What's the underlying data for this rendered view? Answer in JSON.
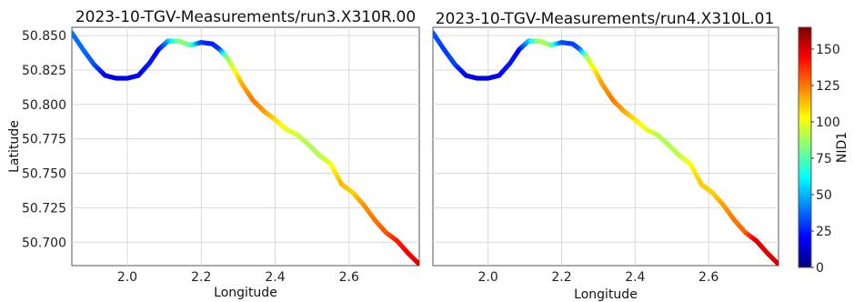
{
  "chart_data": [
    {
      "type": "scatter",
      "title": "2023-10-TGV-Measurements/run3.X310R.00",
      "xlabel": "Longitude",
      "ylabel": "Latitude",
      "xlim": [
        1.85,
        2.79
      ],
      "ylim": [
        50.683,
        50.856
      ],
      "xticks": [
        "2.0",
        "2.2",
        "2.4",
        "2.6"
      ],
      "yticks": [
        "50.850",
        "50.825",
        "50.800",
        "50.775",
        "50.750",
        "50.725",
        "50.700"
      ],
      "grid": true,
      "colored_by": "NID1",
      "points": [
        {
          "x": 1.85,
          "y": 50.852,
          "c": 40
        },
        {
          "x": 1.88,
          "y": 50.84,
          "c": 38
        },
        {
          "x": 1.91,
          "y": 50.829,
          "c": 35
        },
        {
          "x": 1.94,
          "y": 50.821,
          "c": 20
        },
        {
          "x": 1.97,
          "y": 50.819,
          "c": 15
        },
        {
          "x": 2.0,
          "y": 50.819,
          "c": 18
        },
        {
          "x": 2.03,
          "y": 50.821,
          "c": 20
        },
        {
          "x": 2.06,
          "y": 50.83,
          "c": 25
        },
        {
          "x": 2.085,
          "y": 50.84,
          "c": 20
        },
        {
          "x": 2.11,
          "y": 50.846,
          "c": 45
        },
        {
          "x": 2.14,
          "y": 50.846,
          "c": 85
        },
        {
          "x": 2.17,
          "y": 50.843,
          "c": 80
        },
        {
          "x": 2.2,
          "y": 50.845,
          "c": 30
        },
        {
          "x": 2.23,
          "y": 50.844,
          "c": 25
        },
        {
          "x": 2.25,
          "y": 50.84,
          "c": 30
        },
        {
          "x": 2.27,
          "y": 50.834,
          "c": 85
        },
        {
          "x": 2.29,
          "y": 50.825,
          "c": 100
        },
        {
          "x": 2.31,
          "y": 50.815,
          "c": 115
        },
        {
          "x": 2.34,
          "y": 50.803,
          "c": 125
        },
        {
          "x": 2.37,
          "y": 50.795,
          "c": 120
        },
        {
          "x": 2.4,
          "y": 50.789,
          "c": 110
        },
        {
          "x": 2.43,
          "y": 50.782,
          "c": 100
        },
        {
          "x": 2.46,
          "y": 50.778,
          "c": 95
        },
        {
          "x": 2.49,
          "y": 50.771,
          "c": 90
        },
        {
          "x": 2.52,
          "y": 50.763,
          "c": 90
        },
        {
          "x": 2.55,
          "y": 50.757,
          "c": 100
        },
        {
          "x": 2.58,
          "y": 50.742,
          "c": 115
        },
        {
          "x": 2.61,
          "y": 50.736,
          "c": 110
        },
        {
          "x": 2.64,
          "y": 50.727,
          "c": 120
        },
        {
          "x": 2.67,
          "y": 50.716,
          "c": 125
        },
        {
          "x": 2.7,
          "y": 50.707,
          "c": 130
        },
        {
          "x": 2.73,
          "y": 50.701,
          "c": 140
        },
        {
          "x": 2.76,
          "y": 50.692,
          "c": 145
        },
        {
          "x": 2.79,
          "y": 50.684,
          "c": 150
        }
      ]
    },
    {
      "type": "scatter",
      "title": "2023-10-TGV-Measurements/run4.X310L.01",
      "xlabel": "Longitude",
      "ylabel": "",
      "xlim": [
        1.85,
        2.79
      ],
      "ylim": [
        50.683,
        50.856
      ],
      "xticks": [
        "2.0",
        "2.2",
        "2.4",
        "2.6"
      ],
      "yticks": [],
      "grid": true,
      "colored_by": "NID1",
      "points": [
        {
          "x": 1.85,
          "y": 50.852,
          "c": 35
        },
        {
          "x": 1.88,
          "y": 50.84,
          "c": 30
        },
        {
          "x": 1.91,
          "y": 50.829,
          "c": 32
        },
        {
          "x": 1.94,
          "y": 50.821,
          "c": 18
        },
        {
          "x": 1.97,
          "y": 50.819,
          "c": 15
        },
        {
          "x": 2.0,
          "y": 50.819,
          "c": 16
        },
        {
          "x": 2.03,
          "y": 50.821,
          "c": 20
        },
        {
          "x": 2.06,
          "y": 50.83,
          "c": 25
        },
        {
          "x": 2.085,
          "y": 50.84,
          "c": 20
        },
        {
          "x": 2.11,
          "y": 50.846,
          "c": 50
        },
        {
          "x": 2.14,
          "y": 50.846,
          "c": 90
        },
        {
          "x": 2.17,
          "y": 50.843,
          "c": 85
        },
        {
          "x": 2.2,
          "y": 50.845,
          "c": 35
        },
        {
          "x": 2.23,
          "y": 50.844,
          "c": 30
        },
        {
          "x": 2.25,
          "y": 50.84,
          "c": 35
        },
        {
          "x": 2.27,
          "y": 50.834,
          "c": 90
        },
        {
          "x": 2.29,
          "y": 50.825,
          "c": 105
        },
        {
          "x": 2.31,
          "y": 50.815,
          "c": 118
        },
        {
          "x": 2.34,
          "y": 50.803,
          "c": 125
        },
        {
          "x": 2.37,
          "y": 50.795,
          "c": 118
        },
        {
          "x": 2.4,
          "y": 50.789,
          "c": 108
        },
        {
          "x": 2.43,
          "y": 50.782,
          "c": 100
        },
        {
          "x": 2.46,
          "y": 50.778,
          "c": 92
        },
        {
          "x": 2.49,
          "y": 50.771,
          "c": 90
        },
        {
          "x": 2.52,
          "y": 50.763,
          "c": 92
        },
        {
          "x": 2.55,
          "y": 50.757,
          "c": 102
        },
        {
          "x": 2.58,
          "y": 50.742,
          "c": 112
        },
        {
          "x": 2.61,
          "y": 50.736,
          "c": 110
        },
        {
          "x": 2.64,
          "y": 50.727,
          "c": 118
        },
        {
          "x": 2.67,
          "y": 50.716,
          "c": 125
        },
        {
          "x": 2.7,
          "y": 50.707,
          "c": 128
        },
        {
          "x": 2.73,
          "y": 50.701,
          "c": 150
        },
        {
          "x": 2.76,
          "y": 50.692,
          "c": 148
        },
        {
          "x": 2.79,
          "y": 50.684,
          "c": 152
        }
      ]
    }
  ],
  "colorbar": {
    "label": "NID1",
    "min": 0,
    "max": 165,
    "ticks": [
      "0",
      "25",
      "50",
      "75",
      "100",
      "125",
      "150"
    ],
    "colormap": "jet",
    "colors": [
      "#00007f",
      "#0000ff",
      "#007fff",
      "#00ffff",
      "#7fff7f",
      "#ffff00",
      "#ff7f00",
      "#ff0000",
      "#7f0000"
    ]
  }
}
